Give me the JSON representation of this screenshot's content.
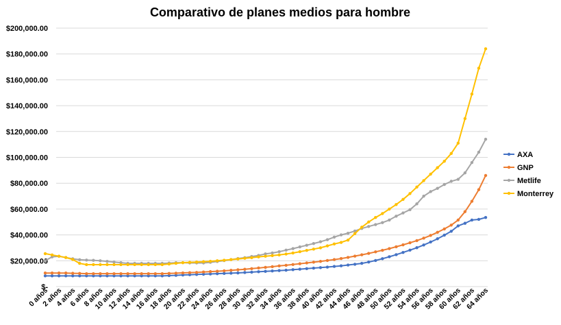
{
  "chart_data": {
    "type": "line",
    "title": "Comparativo de planes medios para hombre",
    "xlabel": "",
    "ylabel": "",
    "ylim": [
      0,
      200000
    ],
    "yticks": [
      0,
      20000,
      40000,
      60000,
      80000,
      100000,
      120000,
      140000,
      160000,
      180000,
      200000
    ],
    "ytick_labels": [
      "$-",
      "$20,000.00",
      "$40,000.00",
      "$60,000.00",
      "$80,000.00",
      "$100,000.00",
      "$120,000.00",
      "$140,000.00",
      "$160,000.00",
      "$180,000.00",
      "$200,000.00"
    ],
    "grid": true,
    "legend": "right",
    "categories": [
      "0 años",
      "1 años",
      "2 años",
      "3 años",
      "4 años",
      "5 años",
      "6 años",
      "7 años",
      "8 años",
      "9 años",
      "10 años",
      "11 años",
      "12 años",
      "13 años",
      "14 años",
      "15 años",
      "16 años",
      "17 años",
      "18 años",
      "19 años",
      "20 años",
      "21 años",
      "22 años",
      "23 años",
      "24 años",
      "25 años",
      "26 años",
      "27 años",
      "28 años",
      "29 años",
      "30 años",
      "31 años",
      "32 años",
      "33 años",
      "34 años",
      "35 años",
      "36 años",
      "37 años",
      "38 años",
      "39 años",
      "40 años",
      "41 años",
      "42 años",
      "43 años",
      "44 años",
      "45 años",
      "46 años",
      "47 años",
      "48 años",
      "49 años",
      "50 años",
      "51 años",
      "52 años",
      "53 años",
      "54 años",
      "55 años",
      "56 años",
      "57 años",
      "58 años",
      "59 años",
      "60 años",
      "61 años",
      "62 años",
      "63 años",
      "64 años"
    ],
    "x_label_every": 2,
    "series": [
      {
        "name": "AXA",
        "color": "#4472C4",
        "values": [
          8300,
          8300,
          8300,
          8300,
          8300,
          8300,
          8300,
          8300,
          8300,
          8300,
          8300,
          8300,
          8300,
          8300,
          8300,
          8300,
          8300,
          8300,
          8500,
          8700,
          9000,
          9200,
          9400,
          9600,
          9800,
          10000,
          10200,
          10400,
          10600,
          10900,
          11200,
          11500,
          11800,
          12100,
          12400,
          12700,
          13100,
          13500,
          13900,
          14300,
          14700,
          15100,
          15600,
          16100,
          16700,
          17300,
          18000,
          19000,
          20200,
          21600,
          23100,
          24700,
          26400,
          28200,
          30100,
          32200,
          34500,
          37000,
          39800,
          42800,
          47000,
          49000,
          51500,
          52000,
          53500
        ]
      },
      {
        "name": "GNP",
        "color": "#ED7D31",
        "values": [
          10500,
          10500,
          10500,
          10500,
          10300,
          10200,
          10000,
          10000,
          10000,
          10000,
          10000,
          10000,
          10000,
          10000,
          10000,
          10000,
          10000,
          10000,
          10200,
          10400,
          10600,
          10800,
          11000,
          11300,
          11600,
          11900,
          12200,
          12600,
          13000,
          13400,
          13900,
          14400,
          14900,
          15400,
          16000,
          16500,
          17100,
          17700,
          18300,
          18900,
          19500,
          20200,
          20900,
          21700,
          22600,
          23600,
          24600,
          25700,
          26900,
          28100,
          29400,
          30800,
          32300,
          33900,
          35600,
          37500,
          39600,
          42000,
          44600,
          47600,
          51500,
          58000,
          66000,
          75000,
          86000
        ]
      },
      {
        "name": "Metlife",
        "color": "#A5A5A5",
        "values": [
          20000,
          23000,
          23500,
          22500,
          21500,
          20800,
          20500,
          20300,
          20000,
          19500,
          19000,
          18500,
          18000,
          18000,
          18000,
          18000,
          18000,
          18000,
          18200,
          18500,
          18500,
          18300,
          18300,
          18300,
          18800,
          19400,
          20100,
          20900,
          21700,
          22400,
          23300,
          24100,
          25300,
          26000,
          27000,
          28200,
          29400,
          30700,
          32000,
          33300,
          34700,
          36300,
          38300,
          40000,
          41300,
          43000,
          45000,
          46500,
          48000,
          49500,
          51500,
          54500,
          57000,
          59500,
          64000,
          70000,
          73500,
          76000,
          79000,
          81500,
          83000,
          88000,
          96000,
          104000,
          114000
        ]
      },
      {
        "name": "Monterrey",
        "color": "#FFC000",
        "values": [
          25500,
          24500,
          23500,
          22500,
          21000,
          18000,
          17000,
          17000,
          17000,
          17000,
          17000,
          17000,
          17000,
          17000,
          17000,
          17000,
          17000,
          17000,
          17500,
          18000,
          18500,
          18800,
          19000,
          19300,
          19600,
          20000,
          20400,
          20900,
          21400,
          21900,
          22400,
          23000,
          23500,
          24000,
          24500,
          25200,
          26000,
          27000,
          28000,
          29000,
          30000,
          31500,
          33000,
          34200,
          36000,
          41000,
          46000,
          50000,
          53500,
          56500,
          60000,
          63500,
          67500,
          72000,
          77000,
          82000,
          87000,
          92000,
          97000,
          103000,
          111000,
          130000,
          149000,
          169000,
          184000
        ]
      }
    ]
  }
}
